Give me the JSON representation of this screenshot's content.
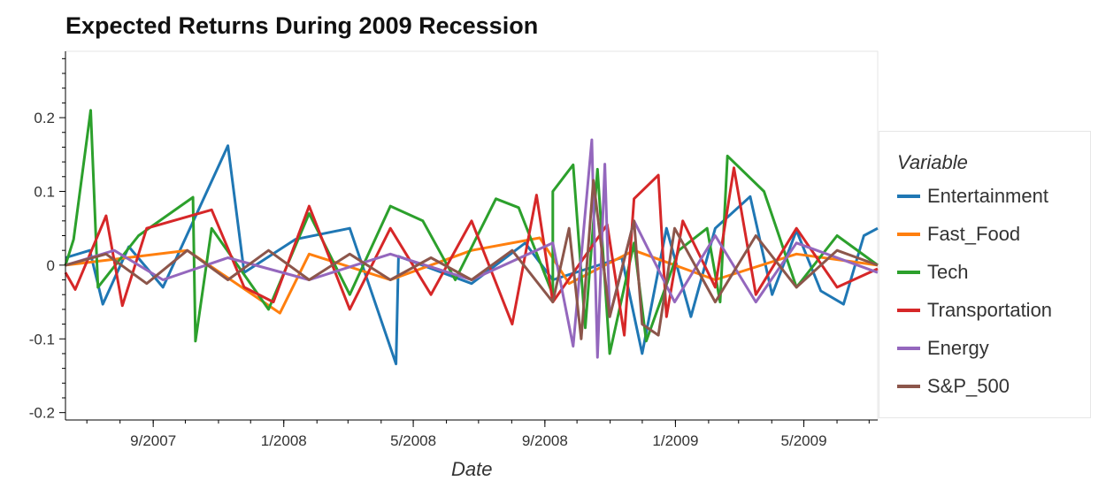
{
  "chart_data": {
    "type": "line",
    "title": "Expected Returns During 2009 Recession",
    "xlabel": "Date",
    "ylabel": "",
    "grid": false,
    "legend_title": "Variable",
    "legend_placement": "right",
    "ylim": [
      -0.21,
      0.29
    ],
    "xlim": [
      "2007-06-11",
      "2009-07-09"
    ],
    "y_ticks": [
      "0.2",
      "0.1",
      "0",
      "-0.1",
      "-0.2"
    ],
    "x_ticks": [
      "9/2007",
      "1/2008",
      "5/2008",
      "9/2008",
      "1/2009",
      "5/2009"
    ],
    "x_tick_dates": [
      "2007-09-01",
      "2008-01-01",
      "2008-05-01",
      "2008-09-01",
      "2009-01-01",
      "2009-05-01"
    ],
    "series": [
      {
        "name": "Entertainment",
        "color": "#1f77b4",
        "values": [
          [
            0.0,
            0.01
          ],
          [
            0.03,
            0.02
          ],
          [
            0.046,
            -0.053
          ],
          [
            0.078,
            0.025
          ],
          [
            0.12,
            -0.03
          ],
          [
            0.2,
            0.162
          ],
          [
            0.22,
            -0.01
          ],
          [
            0.283,
            0.035
          ],
          [
            0.35,
            0.05
          ],
          [
            0.407,
            -0.134
          ],
          [
            0.41,
            0.012
          ],
          [
            0.5,
            -0.025
          ],
          [
            0.566,
            0.03
          ],
          [
            0.6,
            -0.02
          ],
          [
            0.685,
            0.01
          ],
          [
            0.71,
            -0.12
          ],
          [
            0.74,
            0.05
          ],
          [
            0.77,
            -0.07
          ],
          [
            0.8,
            0.05
          ],
          [
            0.843,
            0.093
          ],
          [
            0.87,
            -0.04
          ],
          [
            0.9,
            0.047
          ],
          [
            0.93,
            -0.035
          ],
          [
            0.958,
            -0.053
          ],
          [
            0.983,
            0.04
          ],
          [
            1.0,
            0.05
          ]
        ]
      },
      {
        "name": "Fast_Food",
        "color": "#ff7f0e",
        "values": [
          [
            0.0,
            0.0
          ],
          [
            0.15,
            0.02
          ],
          [
            0.264,
            -0.065
          ],
          [
            0.3,
            0.015
          ],
          [
            0.4,
            -0.02
          ],
          [
            0.5,
            0.02
          ],
          [
            0.584,
            0.037
          ],
          [
            0.62,
            -0.025
          ],
          [
            0.7,
            0.02
          ],
          [
            0.8,
            -0.02
          ],
          [
            0.9,
            0.015
          ],
          [
            1.0,
            0.0
          ]
        ]
      },
      {
        "name": "Tech",
        "color": "#2ca02c",
        "values": [
          [
            0.0,
            0.0
          ],
          [
            0.01,
            0.035
          ],
          [
            0.031,
            0.21
          ],
          [
            0.04,
            -0.03
          ],
          [
            0.09,
            0.04
          ],
          [
            0.157,
            0.092
          ],
          [
            0.16,
            -0.103
          ],
          [
            0.18,
            0.05
          ],
          [
            0.25,
            -0.06
          ],
          [
            0.3,
            0.07
          ],
          [
            0.35,
            -0.04
          ],
          [
            0.4,
            0.08
          ],
          [
            0.44,
            0.06
          ],
          [
            0.48,
            -0.02
          ],
          [
            0.53,
            0.09
          ],
          [
            0.558,
            0.078
          ],
          [
            0.6,
            -0.04
          ],
          [
            0.6,
            0.1
          ],
          [
            0.625,
            0.136
          ],
          [
            0.64,
            -0.085
          ],
          [
            0.655,
            0.13
          ],
          [
            0.67,
            -0.12
          ],
          [
            0.7,
            0.03
          ],
          [
            0.715,
            -0.103
          ],
          [
            0.755,
            0.02
          ],
          [
            0.79,
            0.05
          ],
          [
            0.806,
            -0.05
          ],
          [
            0.815,
            0.148
          ],
          [
            0.86,
            0.1
          ],
          [
            0.9,
            -0.03
          ],
          [
            0.95,
            0.04
          ],
          [
            1.0,
            0.0
          ]
        ]
      },
      {
        "name": "Transportation",
        "color": "#d62728",
        "values": [
          [
            0.0,
            -0.01
          ],
          [
            0.012,
            -0.033
          ],
          [
            0.05,
            0.067
          ],
          [
            0.07,
            -0.055
          ],
          [
            0.1,
            0.05
          ],
          [
            0.18,
            0.075
          ],
          [
            0.22,
            -0.03
          ],
          [
            0.256,
            -0.05
          ],
          [
            0.3,
            0.08
          ],
          [
            0.35,
            -0.06
          ],
          [
            0.4,
            0.05
          ],
          [
            0.45,
            -0.04
          ],
          [
            0.5,
            0.06
          ],
          [
            0.55,
            -0.08
          ],
          [
            0.58,
            0.095
          ],
          [
            0.6,
            -0.05
          ],
          [
            0.667,
            0.055
          ],
          [
            0.688,
            -0.095
          ],
          [
            0.7,
            0.09
          ],
          [
            0.73,
            0.122
          ],
          [
            0.74,
            -0.07
          ],
          [
            0.76,
            0.06
          ],
          [
            0.8,
            -0.03
          ],
          [
            0.823,
            0.132
          ],
          [
            0.85,
            -0.04
          ],
          [
            0.9,
            0.05
          ],
          [
            0.95,
            -0.03
          ],
          [
            1.0,
            -0.005
          ]
        ]
      },
      {
        "name": "Energy",
        "color": "#9467bd",
        "values": [
          [
            0.0,
            0.0
          ],
          [
            0.06,
            0.02
          ],
          [
            0.12,
            -0.02
          ],
          [
            0.2,
            0.01
          ],
          [
            0.3,
            -0.02
          ],
          [
            0.4,
            0.015
          ],
          [
            0.5,
            -0.02
          ],
          [
            0.6,
            0.03
          ],
          [
            0.625,
            -0.11
          ],
          [
            0.648,
            0.17
          ],
          [
            0.655,
            -0.125
          ],
          [
            0.664,
            0.137
          ],
          [
            0.67,
            -0.07
          ],
          [
            0.7,
            0.06
          ],
          [
            0.75,
            -0.05
          ],
          [
            0.8,
            0.04
          ],
          [
            0.85,
            -0.05
          ],
          [
            0.9,
            0.03
          ],
          [
            1.0,
            -0.01
          ]
        ]
      },
      {
        "name": "S&P_500",
        "color": "#8c564b",
        "values": [
          [
            0.0,
            0.0
          ],
          [
            0.05,
            0.015
          ],
          [
            0.1,
            -0.025
          ],
          [
            0.15,
            0.02
          ],
          [
            0.2,
            -0.02
          ],
          [
            0.25,
            0.02
          ],
          [
            0.3,
            -0.02
          ],
          [
            0.35,
            0.015
          ],
          [
            0.4,
            -0.02
          ],
          [
            0.45,
            0.01
          ],
          [
            0.5,
            -0.02
          ],
          [
            0.55,
            0.02
          ],
          [
            0.6,
            -0.05
          ],
          [
            0.62,
            0.05
          ],
          [
            0.635,
            -0.1
          ],
          [
            0.65,
            0.115
          ],
          [
            0.67,
            -0.07
          ],
          [
            0.7,
            0.06
          ],
          [
            0.71,
            -0.08
          ],
          [
            0.73,
            -0.095
          ],
          [
            0.75,
            0.05
          ],
          [
            0.8,
            -0.05
          ],
          [
            0.85,
            0.04
          ],
          [
            0.9,
            -0.03
          ],
          [
            0.95,
            0.02
          ],
          [
            1.0,
            0.0
          ]
        ]
      }
    ]
  }
}
